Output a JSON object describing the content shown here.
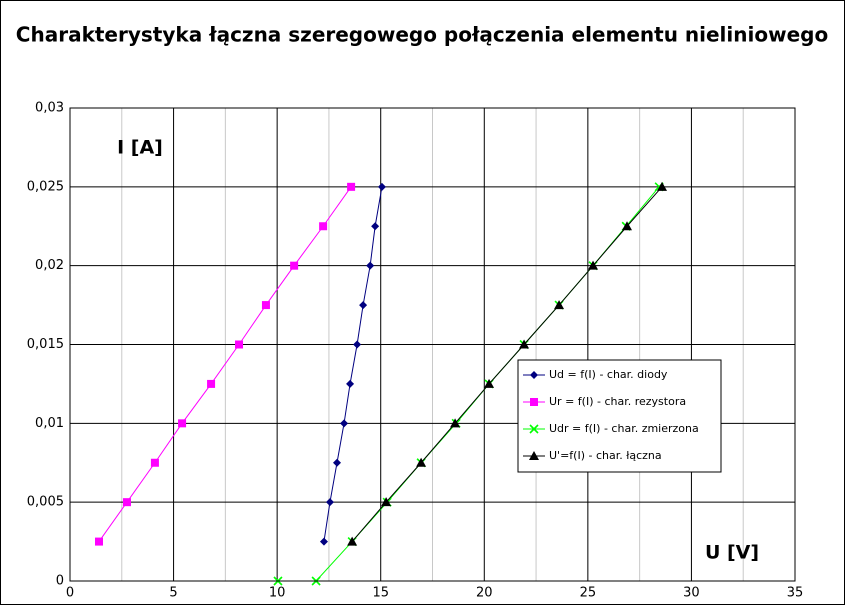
{
  "chart_data": {
    "type": "line",
    "title": "Charakterystyka łączna szeregowego połączenia elementu nieliniowego",
    "annotations": [
      "I [A]",
      "U [V]"
    ],
    "xlim": [
      0,
      35
    ],
    "xticks": [
      0,
      5,
      10,
      15,
      20,
      25,
      30,
      35
    ],
    "xminorticks": [
      2.5,
      7.5,
      12.5,
      17.5,
      22.5,
      27.5,
      32.5
    ],
    "ylim": [
      0,
      0.03
    ],
    "yticks": [
      0,
      {
        "value": 0.005,
        "label": "0,005"
      },
      {
        "value": 0.01,
        "label": "0,01"
      },
      {
        "value": 0.015,
        "label": "0,015"
      },
      {
        "value": 0.02,
        "label": "0,02"
      },
      {
        "value": 0.025,
        "label": "0,025"
      },
      {
        "value": 0.03,
        "label": "0,03"
      }
    ],
    "grid": true,
    "series": [
      {
        "name": "Ud = f(I) - char. diody",
        "color": "#000080",
        "marker": "diamond",
        "x": [
          12.26,
          12.55,
          12.89,
          13.23,
          13.52,
          13.86,
          14.15,
          14.49,
          14.73,
          15.06
        ],
        "values": [
          0.0025,
          0.005,
          0.0075,
          0.01,
          0.0125,
          0.015,
          0.0175,
          0.02,
          0.0225,
          0.025
        ]
      },
      {
        "name": "Ur = f(I) - char. rezystora",
        "color": "#ff00ff",
        "marker": "square",
        "x": [
          1.4,
          2.75,
          4.1,
          5.41,
          6.81,
          8.16,
          9.46,
          10.82,
          12.22,
          13.57
        ],
        "values": [
          0.0025,
          0.005,
          0.0075,
          0.01,
          0.0125,
          0.015,
          0.0175,
          0.02,
          0.0225,
          0.025
        ]
      },
      {
        "name": "Udr = f(I) - char. zmierzona",
        "color": "#00ff00",
        "marker": "x",
        "x": [
          10.04,
          11.88,
          13.62,
          15.31,
          16.95,
          18.64,
          20.23,
          21.92,
          23.61,
          25.25,
          26.85,
          28.44
        ],
        "values": [
          0,
          0,
          0.0025,
          0.005,
          0.0075,
          0.01,
          0.0125,
          0.015,
          0.0175,
          0.02,
          0.0225,
          0.025
        ]
      },
      {
        "name": "U'=f(I)  - char. łączna",
        "color": "#000000",
        "marker": "triangle",
        "x": [
          13.62,
          15.26,
          16.95,
          18.59,
          20.23,
          21.92,
          23.61,
          25.25,
          26.89,
          28.58
        ],
        "values": [
          0.0025,
          0.005,
          0.0075,
          0.01,
          0.0125,
          0.015,
          0.0175,
          0.02,
          0.0225,
          0.025
        ]
      }
    ]
  }
}
